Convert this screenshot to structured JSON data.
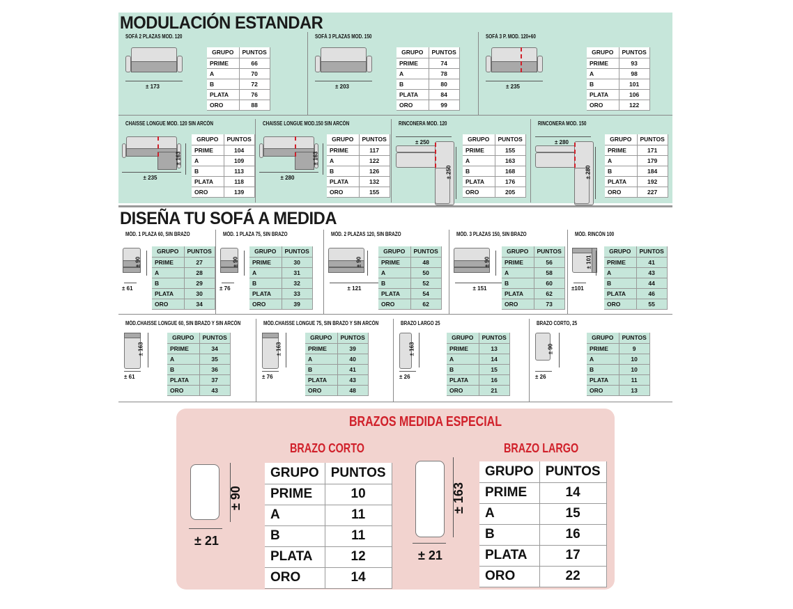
{
  "section1": {
    "title": "MODULACIÓN ESTANDAR",
    "headers": [
      "GRUPO",
      "PUNTOS"
    ],
    "groups": [
      "PRIME",
      "A",
      "B",
      "PLATA",
      "ORO"
    ],
    "row1": [
      {
        "name": "SOFÁ 2 PLAZAS MOD. 120",
        "width": "± 173",
        "icon": "sofa-2-seat",
        "points": [
          66,
          70,
          72,
          76,
          88
        ]
      },
      {
        "name": "SOFÁ 3 PLAZAS MOD. 150",
        "width": "± 203",
        "icon": "sofa-3-seat",
        "points": [
          74,
          78,
          80,
          84,
          99
        ]
      },
      {
        "name": "SOFÁ 3 P. MOD. 120+60",
        "width": "± 235",
        "icon": "sofa-3-seat-split",
        "points": [
          93,
          98,
          101,
          106,
          122
        ]
      }
    ],
    "row2": [
      {
        "name": "CHAISSE LONGUE MOD. 120  SIN ARCÓN",
        "width": "± 235",
        "depth": "± 163",
        "icon": "chaise-longue",
        "points": [
          104,
          109,
          113,
          118,
          139
        ]
      },
      {
        "name": "CHAISSE LONGUE MOD.150 SIN ARCÓN",
        "width": "± 280",
        "depth": "± 163",
        "icon": "chaise-longue",
        "points": [
          117,
          122,
          126,
          132,
          155
        ]
      },
      {
        "name": "RINCONERA MOD. 120",
        "width": "± 250",
        "depth": "± 250",
        "icon": "corner-sofa",
        "points": [
          155,
          163,
          168,
          176,
          205
        ]
      },
      {
        "name": "RINCONERA MOD. 150",
        "width": "± 280",
        "depth": "± 280",
        "icon": "corner-sofa",
        "points": [
          171,
          179,
          184,
          192,
          227
        ]
      }
    ]
  },
  "section2": {
    "title": "DISEÑA TU SOFÁ A MEDIDA",
    "row1": [
      {
        "name": "MÓD. 1 PLAZA 60, SIN BRAZO",
        "width": "± 61",
        "depth": "± 90",
        "icon": "module-1-seat",
        "points": [
          27,
          28,
          29,
          30,
          34
        ]
      },
      {
        "name": "MÓD. 1 PLAZA 75, SIN BRAZO",
        "width": "± 76",
        "depth": "± 90",
        "icon": "module-1-seat",
        "points": [
          30,
          31,
          32,
          33,
          39
        ]
      },
      {
        "name": "MÓD. 2 PLAZAS 120, SIN BRAZO",
        "width": "± 121",
        "depth": "± 90",
        "icon": "module-2-seat",
        "points": [
          48,
          50,
          52,
          54,
          62
        ]
      },
      {
        "name": "MÓD. 3 PLAZAS 150, SIN BRAZO",
        "width": "± 151",
        "depth": "± 90",
        "icon": "module-3-seat",
        "points": [
          56,
          58,
          60,
          62,
          73
        ]
      },
      {
        "name": "MÓD. RINCÓN 100",
        "width": "±101",
        "depth": "± 101",
        "icon": "corner-module",
        "points": [
          41,
          43,
          44,
          46,
          55
        ]
      }
    ],
    "row2": [
      {
        "name": "MÓD.CHAISSE LONGUE 60, SIN BRAZO Y SIN ARCÓN",
        "width": "± 61",
        "depth": "± 163",
        "icon": "chaise-module",
        "points": [
          34,
          35,
          36,
          37,
          43
        ]
      },
      {
        "name": "MÓD.CHAISSE LONGUE 75, SIN BRAZO Y SIN ARCÓN",
        "width": "± 76",
        "depth": "± 163",
        "icon": "chaise-module",
        "points": [
          39,
          40,
          41,
          43,
          48
        ]
      },
      {
        "name": "BRAZO LARGO 25",
        "width": "± 26",
        "depth": "± 163",
        "icon": "arm-long",
        "points": [
          13,
          14,
          15,
          16,
          21
        ]
      },
      {
        "name": "BRAZO CORTO, 25",
        "width": "± 26",
        "depth": "± 90",
        "icon": "arm-short",
        "points": [
          9,
          10,
          10,
          11,
          13
        ]
      }
    ]
  },
  "special": {
    "title": "BRAZOS MEDIDA  ESPECIAL",
    "items": [
      {
        "name": "BRAZO CORTO",
        "width": "± 21",
        "depth": "± 90",
        "icon": "arm-short",
        "points": [
          10,
          11,
          11,
          12,
          14
        ]
      },
      {
        "name": "BRAZO LARGO",
        "width": "± 21",
        "depth": "± 163",
        "icon": "arm-long",
        "points": [
          14,
          15,
          16,
          17,
          22
        ]
      }
    ]
  },
  "colors": {
    "green": "#c6e6da",
    "pink": "#f2d3cf",
    "red": "#d0202a"
  }
}
